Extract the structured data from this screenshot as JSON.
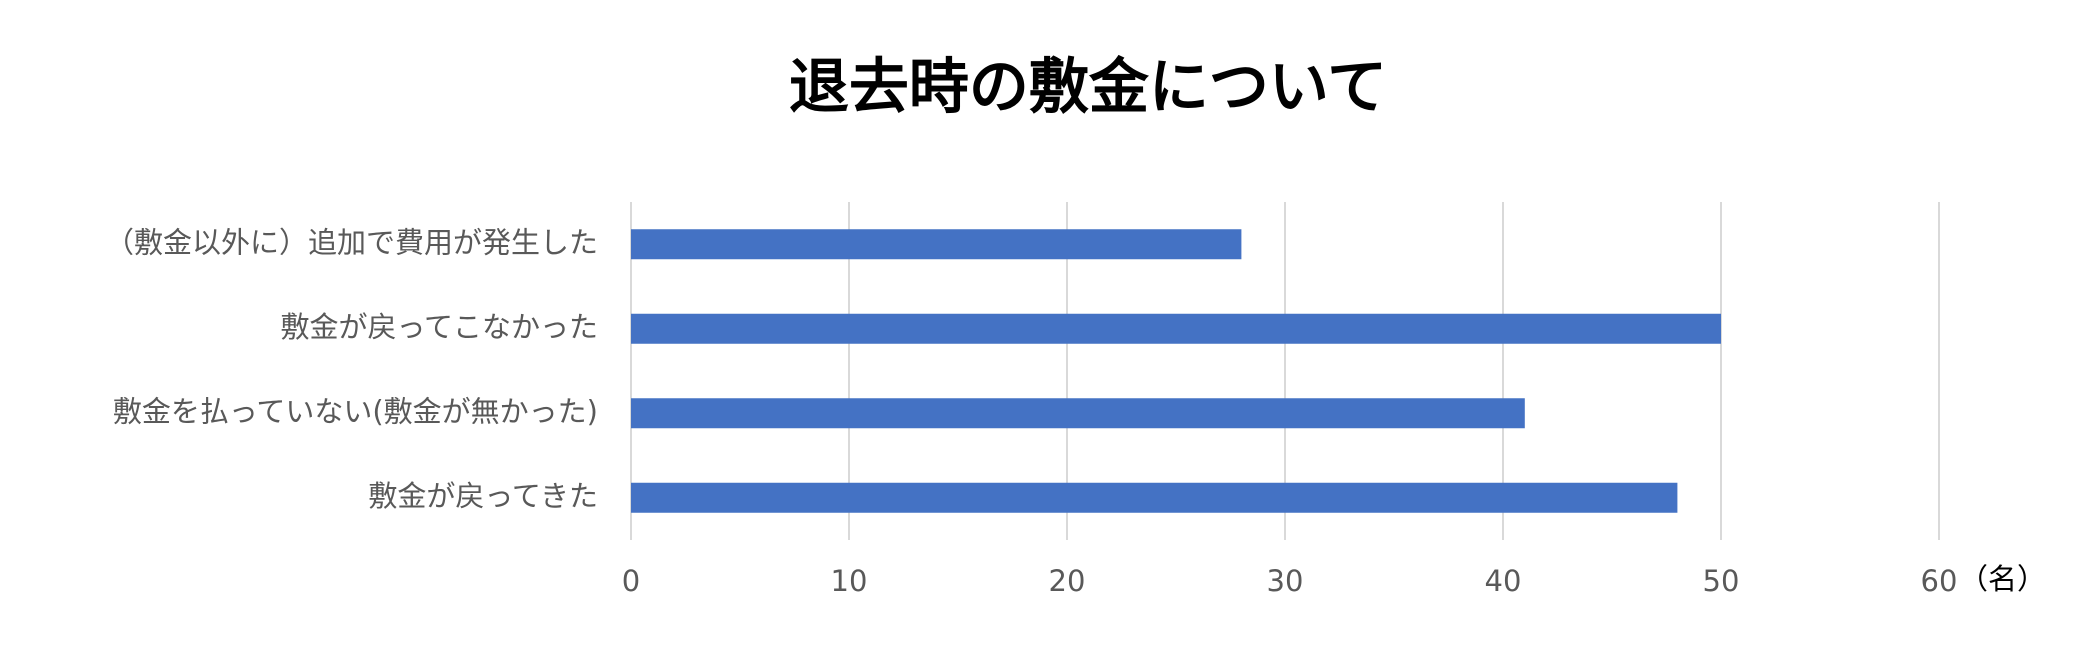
{
  "chart_data": {
    "type": "bar",
    "orientation": "horizontal",
    "title": "退去時の敷金について",
    "categories": [
      "（敷金以外に）追加で費用が発生した",
      "敷金が戻ってこなかった",
      "敷金を払っていない(敷金が無かった)",
      "敷金が戻ってきた"
    ],
    "values": [
      28,
      50,
      41,
      48
    ],
    "color": "#4472c4",
    "xlim": [
      0,
      60
    ],
    "xticks": [
      0,
      10,
      20,
      30,
      40,
      50,
      60
    ],
    "x_label": "（名）",
    "grid": true
  }
}
